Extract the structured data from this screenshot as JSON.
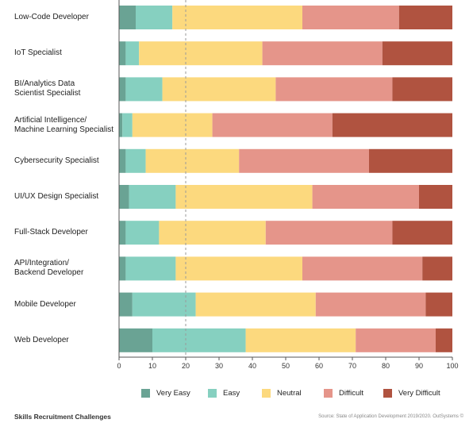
{
  "chart_data": {
    "type": "bar",
    "orientation": "horizontal",
    "stacked": true,
    "title": "",
    "xlabel": "",
    "ylabel": "",
    "xlim": [
      0,
      100
    ],
    "x_ticks": [
      0,
      10,
      20,
      30,
      40,
      50,
      60,
      70,
      80,
      90,
      100
    ],
    "reference_line": 20,
    "grid": false,
    "legend_position": "bottom",
    "categories": [
      "Low-Code Developer",
      "IoT Specialist",
      "BI/Analytics Data Scientist Specialist",
      "Artificial Intelligence/ Machine Learning Specialist",
      "Cybersecurity Specialist",
      "UI/UX Design Specialist",
      "Full-Stack Developer",
      "API/Integration/ Backend Developer",
      "Mobile Developer",
      "Web Developer"
    ],
    "category_lines": [
      [
        "Low-Code Developer"
      ],
      [
        "IoT Specialist"
      ],
      [
        "BI/Analytics Data",
        "Scientist Specialist"
      ],
      [
        "Artificial Intelligence/",
        "Machine Learning Specialist"
      ],
      [
        "Cybersecurity Specialist"
      ],
      [
        "UI/UX Design Specialist"
      ],
      [
        "Full-Stack Developer"
      ],
      [
        "API/Integration/",
        "Backend Developer"
      ],
      [
        "Mobile Developer"
      ],
      [
        "Web Developer"
      ]
    ],
    "series": [
      {
        "name": "Very Easy",
        "color": "#6aa394",
        "values": [
          5,
          2,
          2,
          1,
          2,
          3,
          2,
          2,
          4,
          10
        ]
      },
      {
        "name": "Easy",
        "color": "#86d0c0",
        "values": [
          11,
          4,
          11,
          3,
          6,
          14,
          10,
          15,
          19,
          28
        ]
      },
      {
        "name": "Neutral",
        "color": "#fcd97e",
        "values": [
          39,
          37,
          34,
          24,
          28,
          41,
          32,
          38,
          36,
          33
        ]
      },
      {
        "name": "Difficult",
        "color": "#e5958a",
        "values": [
          29,
          36,
          35,
          36,
          39,
          32,
          38,
          36,
          33,
          24
        ]
      },
      {
        "name": "Very Difficult",
        "color": "#b05340",
        "values": [
          16,
          21,
          18,
          36,
          25,
          10,
          18,
          9,
          8,
          5
        ]
      }
    ]
  },
  "footer": {
    "title": "Skills Recruitment Challenges",
    "source": "Source: State of Application Development 2019/2020. OutSystems ©"
  }
}
